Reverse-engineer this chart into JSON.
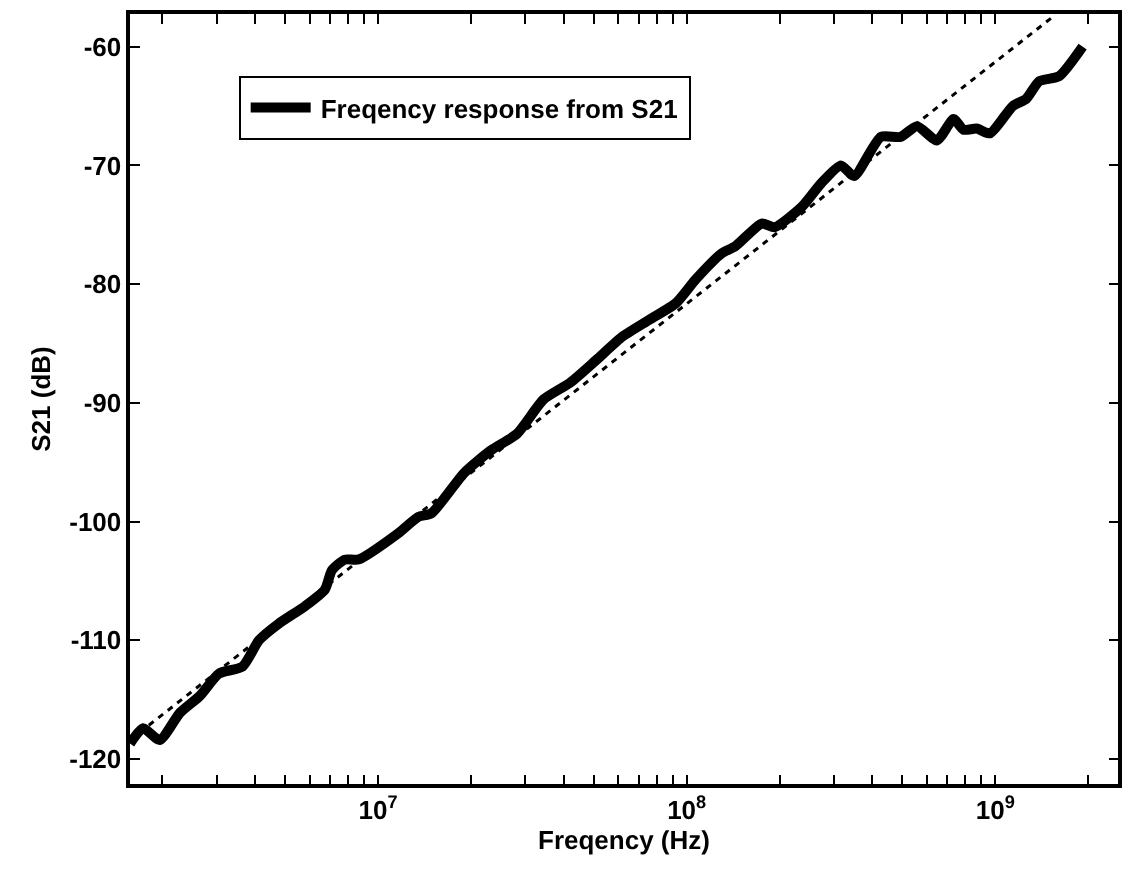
{
  "chart_data": {
    "type": "line",
    "xlabel": "Freqency (Hz)",
    "ylabel": "S21 (dB)",
    "log": "x",
    "xlim": [
      1570000,
      2500000000
    ],
    "ylim": [
      -122.1,
      -57.25
    ],
    "xticks": [
      {
        "value": 2000000,
        "label": null
      },
      {
        "value": 3000000,
        "label": null
      },
      {
        "value": 4000000,
        "label": null
      },
      {
        "value": 5000000,
        "label": null
      },
      {
        "value": 6000000,
        "label": null
      },
      {
        "value": 7000000,
        "label": null
      },
      {
        "value": 8000000,
        "label": null
      },
      {
        "value": 9000000,
        "label": null
      },
      {
        "value": 10000000,
        "label": "10$^{7}$"
      },
      {
        "value": 20000000,
        "label": null
      },
      {
        "value": 30000000,
        "label": null
      },
      {
        "value": 40000000,
        "label": null
      },
      {
        "value": 50000000,
        "label": null
      },
      {
        "value": 60000000,
        "label": null
      },
      {
        "value": 70000000,
        "label": null
      },
      {
        "value": 80000000,
        "label": null
      },
      {
        "value": 90000000,
        "label": null
      },
      {
        "value": 100000000,
        "label": "10$^{8}$"
      },
      {
        "value": 200000000,
        "label": null
      },
      {
        "value": 300000000,
        "label": null
      },
      {
        "value": 400000000,
        "label": null
      },
      {
        "value": 500000000,
        "label": null
      },
      {
        "value": 600000000,
        "label": null
      },
      {
        "value": 700000000,
        "label": null
      },
      {
        "value": 800000000,
        "label": null
      },
      {
        "value": 900000000,
        "label": null
      },
      {
        "value": 1000000000,
        "label": "10$^{9}$"
      },
      {
        "value": 2000000000,
        "label": null
      }
    ],
    "yticks": [
      -120,
      -110,
      -100,
      -90,
      -80,
      -70,
      -60
    ],
    "legend": "top left",
    "marker": "none",
    "series": [
      {
        "name": "Freqency response from S21",
        "color": "#000000",
        "line_style": "solid",
        "x": [
          1570000,
          1730000,
          1960000,
          2280000,
          2640000,
          3050000,
          3640000,
          4110000,
          4760000,
          5810000,
          6730000,
          7080000,
          7800000,
          8630000,
          11600000,
          13500000,
          14900000,
          19000000,
          23200000,
          28200000,
          34400000,
          41900000,
          50900000,
          62100000,
          75700000,
          92300000,
          107000000,
          130000000,
          144000000,
          175000000,
          193000000,
          236000000,
          273000000,
          316000000,
          349000000,
          426000000,
          493000000,
          558000000,
          647000000,
          733000000,
          789000000,
          871000000,
          962000000,
          1140000000,
          1260000000,
          1390000000,
          1610000000,
          1920000000
        ],
        "values": [
          -118.7,
          -117.4,
          -118.4,
          -116.1,
          -114.7,
          -112.8,
          -112.2,
          -110.0,
          -108.6,
          -107.1,
          -105.7,
          -104.1,
          -103.2,
          -103.2,
          -101.0,
          -99.6,
          -99.3,
          -95.9,
          -94.0,
          -92.6,
          -89.7,
          -88.3,
          -86.4,
          -84.4,
          -83.0,
          -81.6,
          -79.6,
          -77.4,
          -76.8,
          -74.9,
          -75.2,
          -73.5,
          -71.5,
          -70.0,
          -70.9,
          -67.6,
          -67.6,
          -66.7,
          -67.9,
          -66.1,
          -67.0,
          -66.9,
          -67.3,
          -65.0,
          -64.4,
          -62.9,
          -62.5,
          -60.0
        ]
      },
      {
        "color": "#000000",
        "line_style": "dotted",
        "x": [
          1570000,
          1570000000
        ],
        "values": [
          -118.4,
          -57.3
        ]
      }
    ]
  }
}
